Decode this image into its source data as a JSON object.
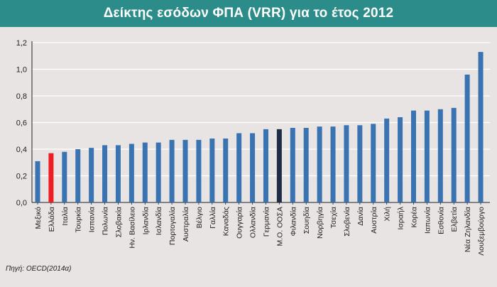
{
  "header": {
    "title": "Δείκτης εσόδων ΦΠΑ (VRR) για το έτος 2012"
  },
  "source": "Πηγή: OECD(2014α)",
  "colors": {
    "header_bg": "#2b8c8a",
    "page_bg": "#e8e4e3",
    "bar_default": "#3a73b2",
    "bar_greece": "#ee1d24",
    "bar_oecd_avg": "#1f2a44",
    "grid": "#ffffff",
    "axis": "#222222"
  },
  "chart_data": {
    "type": "bar",
    "title": "Δείκτης εσόδων ΦΠΑ (VRR) για το έτος 2012",
    "xlabel": "",
    "ylabel": "",
    "ylim": [
      0,
      1.2
    ],
    "yticks": [
      "0,0",
      "0,2",
      "0,4",
      "0,6",
      "0,8",
      "1,0",
      "1,2"
    ],
    "grid": true,
    "categories": [
      "Μεξικό",
      "Ελλάδα",
      "Ιταλία",
      "Τουρκία",
      "Ισπανία",
      "Πολωνία",
      "Σλοβακία",
      "Ην. Βασίλειο",
      "Ιρλανδία",
      "Ισλανδία",
      "Πορτογαλία",
      "Αυστραλία",
      "Βέλγιο",
      "Γαλλία",
      "Καναδάς",
      "Ουγγαρία",
      "Ολλανδία",
      "Γερμανία",
      "Μ.Ο. ΟΟΣΑ",
      "Φιλανδία",
      "Σουηδία",
      "Νορβηγία",
      "Τσεχία",
      "Σλοβενία",
      "Δανία",
      "Αυστρία",
      "Χιλή",
      "Ισραήλ",
      "Κορέα",
      "Ιαπωνία",
      "Εσθονία",
      "Ελβετία",
      "Νέα Ζηλανδία",
      "Λουξεμβούργο"
    ],
    "values": [
      0.31,
      0.37,
      0.38,
      0.4,
      0.41,
      0.43,
      0.43,
      0.44,
      0.45,
      0.45,
      0.47,
      0.47,
      0.47,
      0.48,
      0.48,
      0.52,
      0.52,
      0.55,
      0.55,
      0.56,
      0.56,
      0.57,
      0.57,
      0.58,
      0.58,
      0.59,
      0.63,
      0.64,
      0.69,
      0.69,
      0.7,
      0.71,
      0.96,
      1.13
    ],
    "highlight": {
      "Ελλάδα": "#ee1d24",
      "Μ.Ο. ΟΟΣΑ": "#1f2a44"
    }
  }
}
